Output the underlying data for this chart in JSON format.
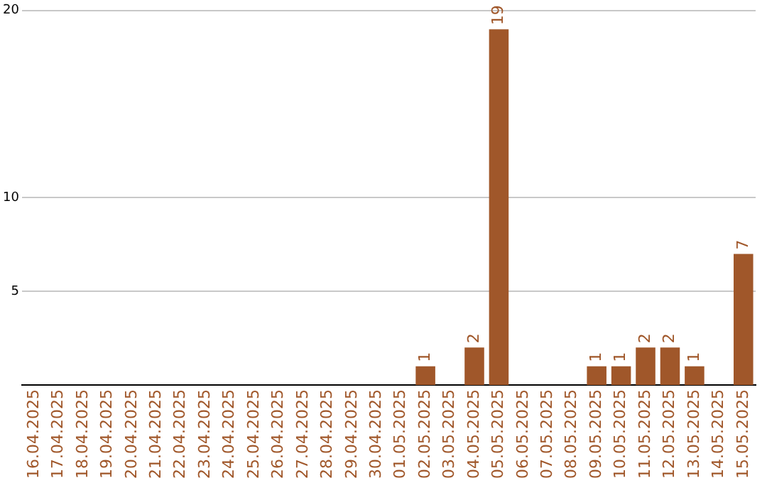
{
  "chart_data": {
    "type": "bar",
    "categories": [
      "16.04.2025",
      "17.04.2025",
      "18.04.2025",
      "19.04.2025",
      "20.04.2025",
      "21.04.2025",
      "22.04.2025",
      "23.04.2025",
      "24.04.2025",
      "25.04.2025",
      "26.04.2025",
      "27.04.2025",
      "28.04.2025",
      "29.04.2025",
      "30.04.2025",
      "01.05.2025",
      "02.05.2025",
      "03.05.2025",
      "04.05.2025",
      "05.05.2025",
      "06.05.2025",
      "07.05.2025",
      "08.05.2025",
      "09.05.2025",
      "10.05.2025",
      "11.05.2025",
      "12.05.2025",
      "13.05.2025",
      "14.05.2025",
      "15.05.2025"
    ],
    "values": [
      0,
      0,
      0,
      0,
      0,
      0,
      0,
      0,
      0,
      0,
      0,
      0,
      0,
      0,
      0,
      0,
      1,
      0,
      2,
      19,
      0,
      0,
      0,
      1,
      1,
      2,
      2,
      1,
      0,
      7
    ],
    "value_labels": [
      null,
      null,
      null,
      null,
      null,
      null,
      null,
      null,
      null,
      null,
      null,
      null,
      null,
      null,
      null,
      null,
      "1",
      null,
      "2",
      "19",
      null,
      null,
      null,
      "1",
      "1",
      "2",
      "2",
      "1",
      null,
      "7"
    ],
    "color": "#a0572a",
    "ylim": [
      0,
      20
    ],
    "yticks": [
      5,
      10,
      20
    ],
    "grid": "y",
    "legend": false
  }
}
